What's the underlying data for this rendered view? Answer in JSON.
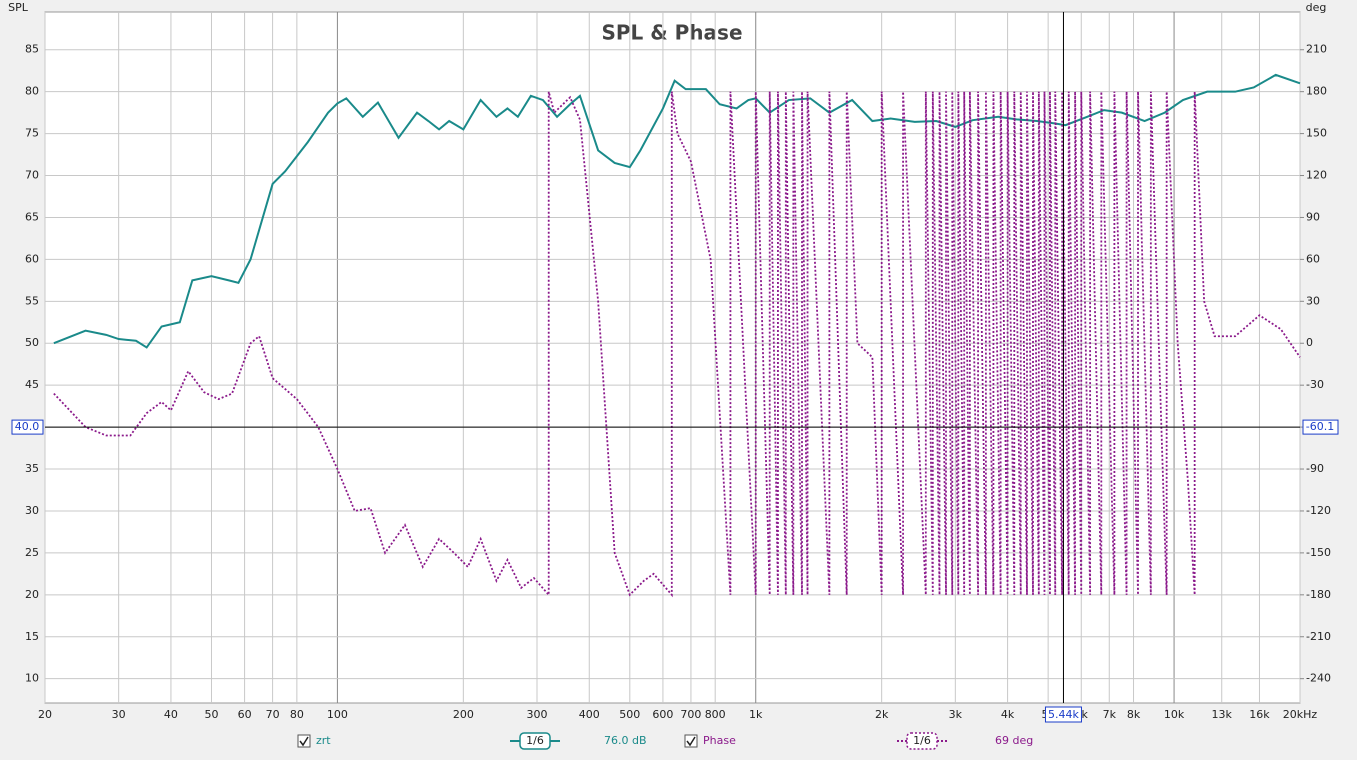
{
  "chart_data": {
    "type": "line",
    "title": "SPL & Phase",
    "y_label": "SPL",
    "y2_label": "deg",
    "log_x": true,
    "grid": true,
    "xlim": [
      20,
      20000
    ],
    "xticks": [
      20,
      30,
      40,
      50,
      60,
      70,
      80,
      100,
      200,
      300,
      400,
      500,
      600,
      700,
      800,
      {
        "value": 1000,
        "label": "1k"
      },
      {
        "value": 2000,
        "label": "2k"
      },
      {
        "value": 3000,
        "label": "3k"
      },
      {
        "value": 4000,
        "label": "4k"
      },
      {
        "value": 5000,
        "label": "5k"
      },
      {
        "value": 6000,
        "label": "6k"
      },
      {
        "value": 7000,
        "label": "7k"
      },
      {
        "value": 8000,
        "label": "8k"
      },
      {
        "value": 10000,
        "label": "10k"
      },
      {
        "value": 13000,
        "label": "13k"
      },
      {
        "value": 16000,
        "label": "16k"
      },
      {
        "value": 20000,
        "label": "20kHz"
      }
    ],
    "ylim": [
      7.1,
      89.5
    ],
    "yticks": [
      10,
      15,
      20,
      25,
      30,
      35,
      40,
      45,
      50,
      55,
      60,
      65,
      70,
      75,
      80,
      85
    ],
    "y2lim": [
      -257.4,
      237
    ],
    "y2ticks": [
      210,
      180,
      150,
      120,
      90,
      60,
      30,
      0,
      -30,
      -60,
      -90,
      -120,
      -150,
      -180,
      -210,
      -240
    ],
    "cursor": {
      "x": {
        "value": 5440,
        "label": "5.44k"
      },
      "y": {
        "value": 40,
        "label": "40.0"
      },
      "y2": -60.1
    },
    "series": [
      {
        "name": "zrt",
        "color": "#1a8a8a",
        "style": "solid",
        "smoothing": "1/6",
        "readout": "76.0 dB",
        "x": [
          21,
          25,
          28,
          30,
          33,
          35,
          38,
          42,
          45,
          50,
          55,
          58,
          62,
          70,
          75,
          85,
          95,
          100,
          105,
          115,
          125,
          140,
          155,
          165,
          175,
          185,
          200,
          220,
          240,
          255,
          270,
          290,
          310,
          335,
          360,
          380,
          420,
          460,
          500,
          530,
          600,
          640,
          680,
          760,
          820,
          900,
          960,
          1000,
          1080,
          1200,
          1350,
          1500,
          1700,
          1900,
          2100,
          2400,
          2700,
          3000,
          3300,
          3800,
          4200,
          4700,
          5200,
          5500,
          6200,
          6800,
          7500,
          8500,
          9500,
          10500,
          12000,
          14000,
          15500,
          17500,
          20000
        ],
        "values": [
          50,
          51.5,
          51,
          50.5,
          50.3,
          49.5,
          52,
          52.5,
          57.5,
          58,
          57.5,
          57.2,
          60,
          69,
          70.5,
          74,
          77.5,
          78.6,
          79.2,
          77,
          78.7,
          74.5,
          77.5,
          76.5,
          75.5,
          76.5,
          75.5,
          79,
          77,
          78,
          77,
          79.5,
          79,
          77,
          78.5,
          79.5,
          73,
          71.5,
          71,
          73,
          78,
          81.3,
          80.3,
          80.3,
          78.5,
          78,
          79,
          79.2,
          77.5,
          79,
          79.2,
          77.5,
          79,
          76.5,
          76.8,
          76.4,
          76.5,
          75.8,
          76.6,
          77,
          76.7,
          76.5,
          76.2,
          76,
          77,
          77.8,
          77.5,
          76.5,
          77.5,
          79,
          80,
          80,
          80.5,
          82,
          81
        ]
      },
      {
        "name": "Phase",
        "color": "#8b1a8b",
        "style": "dotted",
        "axis": "y2",
        "smoothing": "1/6",
        "readout": "69 deg",
        "x": [
          21,
          25,
          28,
          32,
          35,
          38,
          40,
          44,
          48,
          52,
          56,
          62,
          65,
          70,
          80,
          90,
          100,
          110,
          120,
          130,
          145,
          160,
          175,
          190,
          205,
          220,
          240,
          255,
          275,
          295,
          320,
          320,
          330,
          360,
          380,
          420,
          460,
          500,
          540,
          570,
          630,
          630,
          650,
          700,
          780,
          870,
          870,
          1000,
          1000,
          1080,
          1080,
          1130,
          1130,
          1180,
          1180,
          1230,
          1230,
          1290,
          1290,
          1330,
          1330,
          1500,
          1500,
          1650,
          1650,
          1750,
          1900,
          2000,
          2000,
          2250,
          2250,
          2550,
          2550,
          2650,
          2650,
          2750,
          2750,
          2850,
          2850,
          2950,
          2950,
          3050,
          3050,
          3150,
          3150,
          3250,
          3250,
          3400,
          3400,
          3550,
          3550,
          3700,
          3700,
          3850,
          3850,
          4000,
          4000,
          4150,
          4150,
          4300,
          4300,
          4450,
          4450,
          4600,
          4600,
          4750,
          4750,
          4900,
          4900,
          5050,
          5050,
          5200,
          5200,
          5400,
          5400,
          5600,
          5600,
          5800,
          5800,
          6000,
          6000,
          6300,
          6300,
          6700,
          6700,
          7200,
          7200,
          7700,
          7700,
          8200,
          8200,
          8800,
          8800,
          9600,
          9600,
          10200,
          10800,
          11200,
          11200,
          11800,
          12500,
          14000,
          16000,
          18000,
          20000
        ],
        "values": [
          -36,
          -60,
          -66,
          -66,
          -50,
          -42,
          -48,
          -20,
          -35,
          -40,
          -36,
          0,
          5,
          -25,
          -40,
          -60,
          -90,
          -120,
          -118,
          -150,
          -130,
          -160,
          -140,
          -150,
          -160,
          -140,
          -170,
          -155,
          -175,
          -168,
          -180,
          180,
          165,
          176,
          160,
          30,
          -150,
          -180,
          -170,
          -165,
          -180,
          180,
          150,
          130,
          60,
          -180,
          180,
          -180,
          180,
          -180,
          180,
          -180,
          180,
          -180,
          180,
          -180,
          180,
          -180,
          180,
          -180,
          180,
          -180,
          180,
          -180,
          180,
          0,
          -10,
          -180,
          180,
          -180,
          180,
          -180,
          180,
          -180,
          180,
          -180,
          180,
          -180,
          180,
          -180,
          180,
          -180,
          180,
          -180,
          180,
          -180,
          180,
          -180,
          180,
          -180,
          180,
          -180,
          180,
          -180,
          180,
          -180,
          180,
          -180,
          180,
          -180,
          180,
          -180,
          180,
          -180,
          180,
          -180,
          180,
          -180,
          180,
          -180,
          180,
          -180,
          180,
          -180,
          180,
          -180,
          180,
          -180,
          180,
          -180,
          180,
          -180,
          180,
          -180,
          180,
          -180,
          180,
          -180,
          180,
          -180,
          180,
          -180,
          180,
          -180,
          180,
          0,
          -100,
          -180,
          180,
          30,
          5,
          5,
          20,
          10,
          -10
        ]
      }
    ]
  }
}
